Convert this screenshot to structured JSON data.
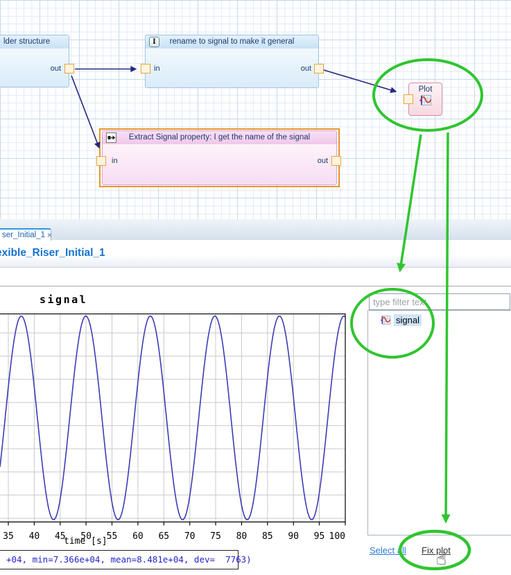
{
  "annotations": {
    "green": "#2fc52f"
  },
  "colors": {
    "navy_connector": "#26267e",
    "curve": "#3c3cb4",
    "accent_blue": "#1673cf"
  },
  "canvas": {
    "block1": {
      "title": "lder structure",
      "out_label": "out"
    },
    "block2": {
      "title": "rename to signal to make it general",
      "icon_glyph": "I",
      "in_label": "in",
      "out_label": "out"
    },
    "extract_block": {
      "title": "Extract Signal property: I get the name of the signal",
      "in_label": "in",
      "out_label": "out"
    },
    "plot_block": {
      "title": "Plot"
    }
  },
  "tab_bar": {
    "active_tab": "ser_Initial_1",
    "close_glyph": "×"
  },
  "header": {
    "title": "exible_Riser_Initial_1"
  },
  "plot": {
    "title": "signal",
    "xlabel": "time [s]",
    "status_text": "+04, min=7.366e+04, mean=8.481e+04, dev=  7763)"
  },
  "chart_data": {
    "type": "line",
    "title": "signal",
    "xlabel": "time [s]",
    "x_ticks": [
      "35",
      "40",
      "45",
      "50",
      "55",
      "60",
      "65",
      "70",
      "75",
      "80",
      "85",
      "90",
      "95",
      "100.01"
    ],
    "x_range_visible": [
      33.4,
      100.01
    ],
    "y_stats": {
      "min": 73660,
      "mean": 84810,
      "max": 95960,
      "dev": 7763
    },
    "waveform": {
      "shape": "sine",
      "offset": 84810,
      "amplitude": 11150,
      "period_s": 12.45,
      "first_peak_t": 37.5
    },
    "series": [
      {
        "name": "signal",
        "color": "#3c3cb4"
      }
    ],
    "grid": true,
    "legend": false
  },
  "side_panel": {
    "filter_placeholder": "type filter text",
    "items": [
      {
        "label": "signal",
        "selected": true
      }
    ],
    "select_all_label": "Select all",
    "fix_plot_label": "Fix plot",
    "cursor_glyph": "☝"
  }
}
